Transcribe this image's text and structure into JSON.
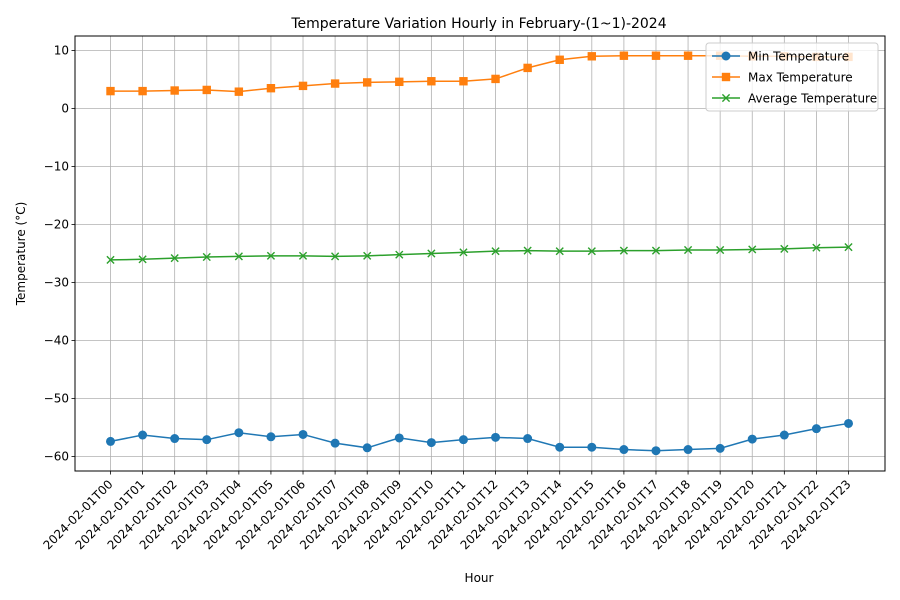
{
  "chart_data": {
    "type": "line",
    "title": "Temperature Variation Hourly in February-(1~1)-2024",
    "xlabel": "Hour",
    "ylabel": "Temperature (°C)",
    "categories": [
      "2024-02-01T00",
      "2024-02-01T01",
      "2024-02-01T02",
      "2024-02-01T03",
      "2024-02-01T04",
      "2024-02-01T05",
      "2024-02-01T06",
      "2024-02-01T07",
      "2024-02-01T08",
      "2024-02-01T09",
      "2024-02-01T10",
      "2024-02-01T11",
      "2024-02-01T12",
      "2024-02-01T13",
      "2024-02-01T14",
      "2024-02-01T15",
      "2024-02-01T16",
      "2024-02-01T17",
      "2024-02-01T18",
      "2024-02-01T19",
      "2024-02-01T20",
      "2024-02-01T21",
      "2024-02-01T22",
      "2024-02-01T23"
    ],
    "ylim": [
      -62.5,
      12.5
    ],
    "yticks": [
      -60,
      -50,
      -40,
      -30,
      -20,
      -10,
      0,
      10
    ],
    "grid": true,
    "legend_position": "top-right",
    "series": [
      {
        "name": "Min Temperature",
        "color": "#1f77b4",
        "marker": "circle",
        "values": [
          -57.4,
          -56.3,
          -56.9,
          -57.1,
          -55.9,
          -56.6,
          -56.2,
          -57.7,
          -58.5,
          -56.8,
          -57.6,
          -57.1,
          -56.7,
          -56.9,
          -58.4,
          -58.4,
          -58.8,
          -59.0,
          -58.8,
          -58.6,
          -57.0,
          -56.3,
          -55.2,
          -54.3
        ]
      },
      {
        "name": "Max Temperature",
        "color": "#ff7f0e",
        "marker": "square",
        "values": [
          3.0,
          3.0,
          3.1,
          3.2,
          2.9,
          3.5,
          3.9,
          4.3,
          4.5,
          4.6,
          4.7,
          4.7,
          5.1,
          7.0,
          8.4,
          9.0,
          9.1,
          9.1,
          9.1,
          9.1,
          9.0,
          9.0,
          8.9,
          8.9
        ]
      },
      {
        "name": "Average Temperature",
        "color": "#2ca02c",
        "marker": "x",
        "values": [
          -26.1,
          -26.0,
          -25.8,
          -25.6,
          -25.5,
          -25.4,
          -25.4,
          -25.5,
          -25.4,
          -25.2,
          -25.0,
          -24.8,
          -24.6,
          -24.5,
          -24.6,
          -24.6,
          -24.5,
          -24.5,
          -24.4,
          -24.4,
          -24.3,
          -24.2,
          -24.0,
          -23.9
        ]
      }
    ]
  }
}
